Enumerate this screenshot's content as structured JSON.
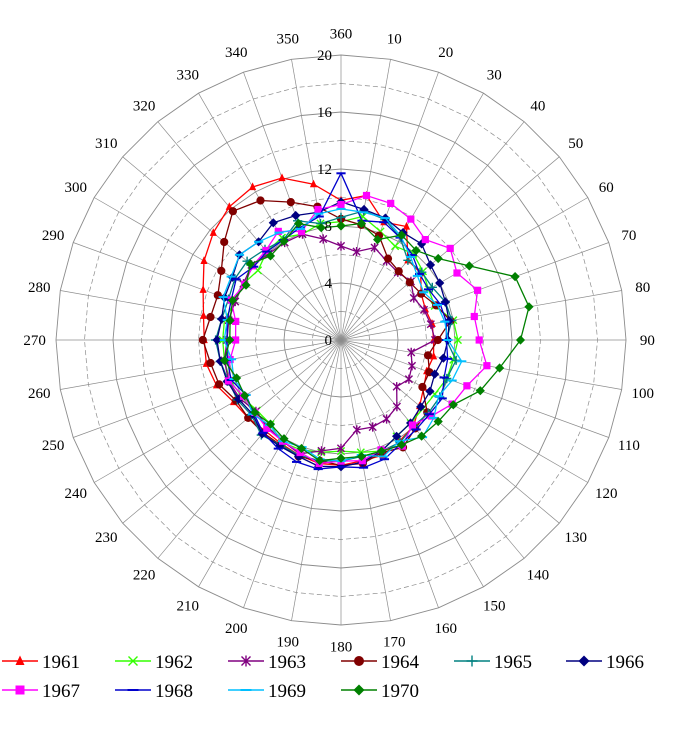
{
  "chart_data": {
    "type": "radar",
    "angular_axis": {
      "unit": "degrees",
      "step": 10,
      "labels": [
        "360",
        "10",
        "20",
        "30",
        "40",
        "50",
        "60",
        "70",
        "80",
        "90",
        "100",
        "110",
        "120",
        "130",
        "140",
        "150",
        "160",
        "170",
        "180",
        "190",
        "200",
        "210",
        "220",
        "230",
        "240",
        "250",
        "260",
        "270",
        "280",
        "290",
        "300",
        "310",
        "320",
        "330",
        "340",
        "350"
      ]
    },
    "radial_axis": {
      "range": [
        0,
        20
      ],
      "tick_labels": [
        "0",
        "4",
        "8",
        "12",
        "16",
        "20"
      ],
      "tick_values": [
        0,
        4,
        8,
        12,
        16,
        20
      ],
      "minor_step": 2
    },
    "legend_position": "bottom",
    "series": [
      {
        "name": "1961",
        "color": "#ff0000",
        "marker": "triangle",
        "values": [
          9.8,
          10.3,
          8.8,
          9.2,
          7.3,
          7.3,
          6.5,
          6.3,
          6.5,
          6.5,
          6.6,
          6.4,
          6.7,
          7.2,
          7.9,
          8.2,
          8.6,
          8.6,
          8.8,
          8.8,
          8.6,
          8.4,
          8.3,
          8.5,
          8.7,
          9.3,
          9.6,
          9.6,
          9.8,
          10.3,
          11.1,
          11.7,
          12.2,
          12.4,
          12.1,
          11.1
        ]
      },
      {
        "name": "1962",
        "color": "#33ff00",
        "marker": "x",
        "values": [
          8.3,
          8.8,
          8.1,
          7.6,
          7.9,
          7.5,
          7.1,
          7.0,
          8.0,
          8.2,
          8.0,
          7.9,
          7.6,
          7.5,
          7.6,
          7.8,
          8.3,
          8.0,
          7.8,
          8.0,
          8.2,
          8.3,
          7.7,
          7.7,
          8.0,
          8.3,
          8.3,
          8.3,
          8.3,
          7.9,
          7.9,
          7.6,
          8.1,
          8.3,
          7.9,
          8.3
        ]
      },
      {
        "name": "1963",
        "color": "#800080",
        "marker": "asterisk",
        "values": [
          6.6,
          6.3,
          6.9,
          6.4,
          6.2,
          6.4,
          5.9,
          6.2,
          6.4,
          6.6,
          5.0,
          5.3,
          5.5,
          5.1,
          6.1,
          6.4,
          6.5,
          6.4,
          7.6,
          7.9,
          8.5,
          8.2,
          8.0,
          7.8,
          8.2,
          8.4,
          8.3,
          8.0,
          8.0,
          7.9,
          7.9,
          8.2,
          7.9,
          7.9,
          7.9,
          7.2
        ]
      },
      {
        "name": "1964",
        "color": "#800000",
        "marker": "circle",
        "values": [
          8.5,
          8.2,
          7.8,
          6.6,
          6.3,
          6.3,
          6.5,
          7.1,
          7.8,
          6.8,
          6.2,
          6.6,
          6.6,
          7.9,
          8.1,
          8.7,
          8.4,
          8.8,
          8.8,
          8.6,
          8.7,
          8.5,
          8.5,
          8.5,
          8.5,
          9.1,
          9.3,
          9.7,
          9.3,
          9.2,
          9.7,
          10.7,
          11.8,
          11.3,
          10.3,
          9.5
        ]
      },
      {
        "name": "1965",
        "color": "#008080",
        "marker": "plus",
        "values": [
          8.6,
          9.2,
          9.0,
          8.3,
          7.3,
          7.4,
          7.4,
          7.8,
          7.9,
          7.4,
          8.2,
          7.9,
          8.0,
          8.0,
          7.9,
          8.3,
          8.3,
          8.3,
          8.5,
          8.6,
          8.6,
          8.5,
          8.7,
          8.2,
          8.4,
          8.4,
          8.6,
          8.8,
          8.5,
          8.4,
          8.6,
          8.6,
          8.3,
          8.1,
          8.9,
          8.3
        ]
      },
      {
        "name": "1966",
        "color": "#000080",
        "marker": "diamond",
        "values": [
          9.7,
          9.3,
          9.1,
          8.7,
          8.8,
          8.2,
          8.0,
          7.8,
          7.7,
          7.5,
          7.3,
          7.0,
          7.2,
          7.3,
          7.6,
          7.8,
          8.3,
          8.7,
          8.9,
          9.0,
          8.7,
          8.6,
          8.6,
          8.1,
          8.3,
          8.5,
          8.6,
          8.7,
          8.5,
          8.7,
          8.8,
          9.3,
          9.0,
          9.5,
          9.3,
          9.1
        ]
      },
      {
        "name": "1967",
        "color": "#ff00ff",
        "marker": "square",
        "values": [
          9.5,
          10.3,
          10.2,
          9.8,
          9.2,
          10.0,
          9.4,
          10.2,
          9.5,
          9.7,
          10.4,
          9.4,
          9.0,
          8.3,
          7.8,
          8.6,
          8.2,
          8.6,
          8.5,
          8.8,
          8.4,
          8.2,
          8.1,
          7.9,
          7.9,
          8.4,
          7.9,
          7.4,
          7.5,
          8.2,
          7.8,
          8.1,
          8.2,
          8.8,
          8.1,
          9.3
        ]
      },
      {
        "name": "1968",
        "color": "#0000cc",
        "marker": "dash",
        "values": [
          11.7,
          8.5,
          8.8,
          8.3,
          7.8,
          7.2,
          7.1,
          7.4,
          7.5,
          7.4,
          7.6,
          7.7,
          8.2,
          8.1,
          8.2,
          8.4,
          8.9,
          9.1,
          8.9,
          9.2,
          9.1,
          8.8,
          8.5,
          8.0,
          7.7,
          8.2,
          8.1,
          8.0,
          8.1,
          8.2,
          8.5,
          8.0,
          8.1,
          8.1,
          8.4,
          8.8
        ]
      },
      {
        "name": "1969",
        "color": "#00bfff",
        "marker": "dash",
        "values": [
          9.2,
          9.1,
          9.1,
          8.4,
          7.6,
          7.0,
          6.7,
          7.2,
          7.4,
          7.5,
          8.6,
          8.3,
          7.9,
          8.5,
          8.9,
          8.2,
          8.7,
          8.2,
          8.5,
          8.5,
          8.0,
          8.2,
          7.8,
          8.1,
          7.7,
          8.0,
          7.8,
          8.2,
          8.1,
          8.8,
          8.9,
          9.3,
          9.0,
          8.7,
          8.3,
          9.0
        ]
      },
      {
        "name": "1970",
        "color": "#008000",
        "marker": "diamond",
        "values": [
          8.0,
          8.3,
          7.5,
          8.5,
          8.2,
          8.9,
          10.4,
          13.0,
          13.4,
          12.6,
          11.3,
          10.4,
          9.1,
          8.9,
          8.8,
          8.5,
          8.3,
          8.3,
          8.3,
          8.6,
          8.1,
          8.0,
          7.7,
          7.9,
          7.8,
          7.8,
          8.3,
          7.8,
          7.9,
          8.1,
          7.7,
          8.3,
          7.7,
          8.0,
          8.7,
          8.0
        ]
      }
    ]
  }
}
